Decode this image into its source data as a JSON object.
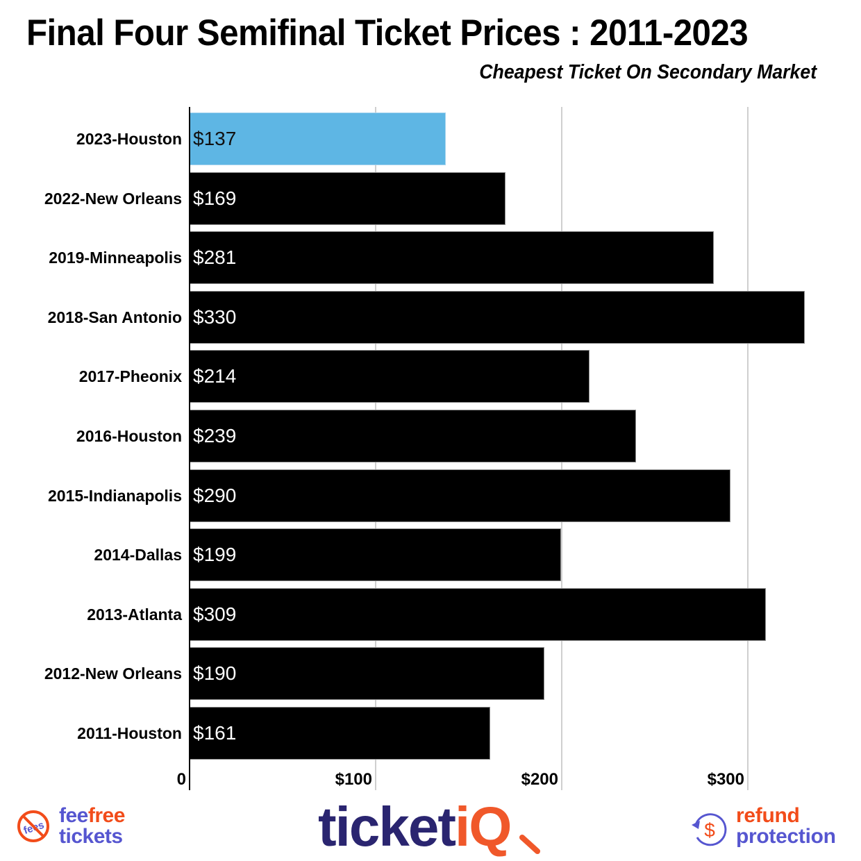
{
  "header": {
    "title": "Final Four Semifinal Ticket Prices : 2011-2023",
    "subtitle": "Cheapest Ticket On Secondary Market"
  },
  "colors": {
    "bar_default": "#000000",
    "bar_highlight": "#5eb6e4",
    "gridline": "#cfcfcf",
    "brand_purple": "#5656d0",
    "brand_navy": "#2a2570",
    "brand_orange": "#f24c1a"
  },
  "chart_data": {
    "type": "bar",
    "orientation": "horizontal",
    "title": "Final Four Semifinal Ticket Prices : 2011-2023",
    "subtitle": "Cheapest Ticket On Secondary Market",
    "xlabel": "",
    "ylabel": "",
    "categories": [
      "2023-Houston",
      "2022-New Orleans",
      "2019-Minneapolis",
      "2018-San Antonio",
      "2017-Pheonix",
      "2016-Houston",
      "2015-Indianapolis",
      "2014-Dallas",
      "2013-Atlanta",
      "2012-New Orleans",
      "2011-Houston"
    ],
    "values": [
      137,
      169,
      281,
      330,
      214,
      239,
      290,
      199,
      309,
      190,
      161
    ],
    "value_labels": [
      "$137",
      "$169",
      "$281",
      "$330",
      "$214",
      "$239",
      "$290",
      "$199",
      "$309",
      "$190",
      "$161"
    ],
    "highlight_index": 0,
    "xlim": [
      0,
      361
    ],
    "x_ticks": [
      0,
      100,
      200,
      300
    ],
    "x_tick_labels": [
      "0",
      "$100",
      "$200",
      "$300"
    ],
    "grid": true,
    "legend": null
  },
  "footer": {
    "feefree": {
      "badge_text": "fees",
      "line1_a": "fee",
      "line1_b": "free",
      "line2": "tickets"
    },
    "ticketiq": {
      "part1": "ticket",
      "part2": "iQ"
    },
    "refund": {
      "symbol": "$",
      "line1": "refund",
      "line2": "protection"
    }
  }
}
